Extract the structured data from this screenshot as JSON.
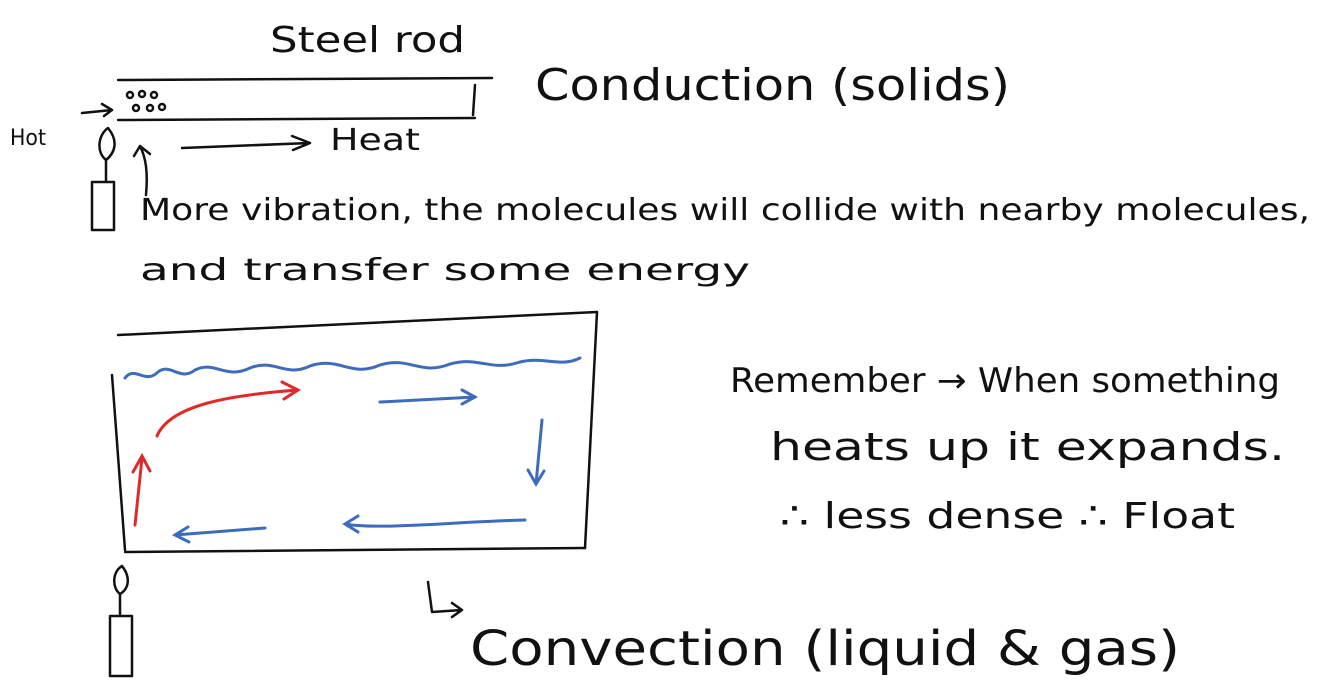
{
  "conduction": {
    "rod_label": "Steel rod",
    "title": "Conduction (solids)",
    "hot_label": "Hot",
    "heat_label": "Heat",
    "explanation": [
      "More vibration, the molecules will collide with nearby molecules,",
      "and transfer some energy"
    ]
  },
  "convection": {
    "note": [
      "Remember → When something",
      "heats up it expands.",
      "∴ less dense ∴ Float"
    ],
    "title": "Convection (liquid & gas)"
  }
}
